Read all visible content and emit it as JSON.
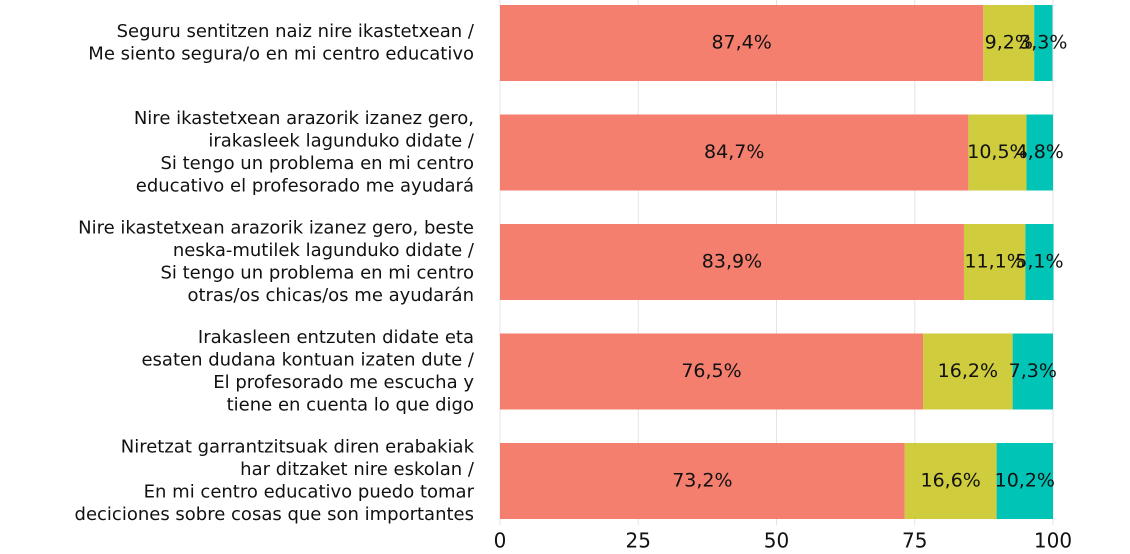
{
  "chart_data": {
    "type": "stacked-barh",
    "categories": [
      [
        "Seguru sentitzen naiz nire ikastetxean /",
        "Me siento segura/o en mi centro educativo"
      ],
      [
        "Nire ikastetxean arazorik izanez gero,",
        "irakasleek lagunduko didate /",
        "Si tengo un problema en mi centro",
        "educativo el profesorado me ayudará"
      ],
      [
        "Nire ikastetxean arazorik izanez gero, beste",
        "neska-mutilek lagunduko didate /",
        "Si tengo un problema en mi centro",
        "otras/os chicas/os me ayudarán"
      ],
      [
        "Irakasleen entzuten didate eta",
        "esaten dudana kontuan izaten dute /",
        "El profesorado me escucha y",
        "tiene en cuenta lo que digo"
      ],
      [
        "Niretzat garrantzitsuak diren erabakiak",
        "har ditzaket nire eskolan /",
        "En mi centro educativo puedo tomar",
        "deciciones sobre cosas que son importantes"
      ]
    ],
    "series": [
      {
        "color": "#f47f6e",
        "values": [
          87.4,
          84.7,
          83.9,
          76.5,
          73.2
        ],
        "value_labels": [
          "87,4%",
          "84,7%",
          "83,9%",
          "76,5%",
          "73,2%"
        ]
      },
      {
        "color": "#cfcd3e",
        "values": [
          9.2,
          10.5,
          11.1,
          16.2,
          16.6
        ],
        "value_labels": [
          "9,2%",
          "10,5%",
          "11,1%",
          "16,2%",
          "16,6%"
        ]
      },
      {
        "color": "#00c4b6",
        "values": [
          3.3,
          4.8,
          5.1,
          7.3,
          10.2
        ],
        "value_labels": [
          "3,3%",
          "4,8%",
          "5,1%",
          "7,3%",
          "10,2%"
        ]
      }
    ],
    "xlim": [
      0,
      100
    ],
    "xticks": [
      0,
      25,
      50,
      75,
      100
    ],
    "grid": true
  }
}
